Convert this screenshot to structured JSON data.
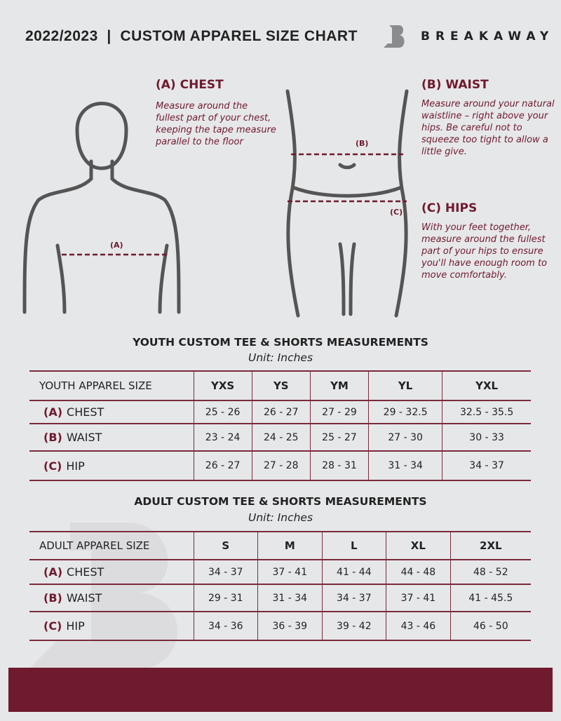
{
  "header": {
    "title": "2022/2023  |  CUSTOM APPAREL SIZE CHART",
    "brand": "BREAKAWAY"
  },
  "figures": {
    "chest_marker": "(A)",
    "waist_marker": "(B)",
    "hips_marker": "(C)"
  },
  "guides": {
    "chest": {
      "title": "(A) CHEST",
      "text": "Measure around the fullest part of your chest, keeping the tape measure parallel to the floor"
    },
    "waist": {
      "title": "(B) WAIST",
      "text": "Measure around your natural waistline – right above your hips. Be careful not to squeeze too tight to allow a little give."
    },
    "hips": {
      "title": "(C) HIPS",
      "text": "With your feet together, measure around the fullest part of your hips to ensure you'll have enough room to move comfortably."
    }
  },
  "youth": {
    "title": "YOUTH CUSTOM TEE & SHORTS MEASUREMENTS",
    "unit": "Unit: Inches",
    "header": "YOUTH APPAREL SIZE",
    "sizes": [
      "YXS",
      "YS",
      "YM",
      "YL",
      "YXL"
    ],
    "rows": [
      {
        "code": "(A)",
        "label": "CHEST",
        "values": [
          "25 - 26",
          "26 - 27",
          "27 - 29",
          "29 - 32.5",
          "32.5 - 35.5"
        ]
      },
      {
        "code": "(B)",
        "label": "WAIST",
        "values": [
          "23 - 24",
          "24 - 25",
          "25 - 27",
          "27 - 30",
          "30 - 33"
        ]
      },
      {
        "code": "(C)",
        "label": "HIP",
        "values": [
          "26 - 27",
          "27 - 28",
          "28 - 31",
          "31 - 34",
          "34 - 37"
        ]
      }
    ]
  },
  "adult": {
    "title": "ADULT CUSTOM TEE & SHORTS MEASUREMENTS",
    "unit": "Unit: Inches",
    "header": "ADULT APPAREL SIZE",
    "sizes": [
      "S",
      "M",
      "L",
      "XL",
      "2XL"
    ],
    "rows": [
      {
        "code": "(A)",
        "label": "CHEST",
        "values": [
          "34 - 37",
          "37 - 41",
          "41 - 44",
          "44 - 48",
          "48 - 52"
        ]
      },
      {
        "code": "(B)",
        "label": "WAIST",
        "values": [
          "29 - 31",
          "31 - 34",
          "34 - 37",
          "37 - 41",
          "41 - 45.5"
        ]
      },
      {
        "code": "(C)",
        "label": "HIP",
        "values": [
          "34 - 36",
          "36 - 39",
          "39 - 42",
          "43 - 46",
          "46 - 50"
        ]
      }
    ]
  },
  "colors": {
    "accent": "#6f1a2e",
    "background": "#e6e7e9"
  }
}
